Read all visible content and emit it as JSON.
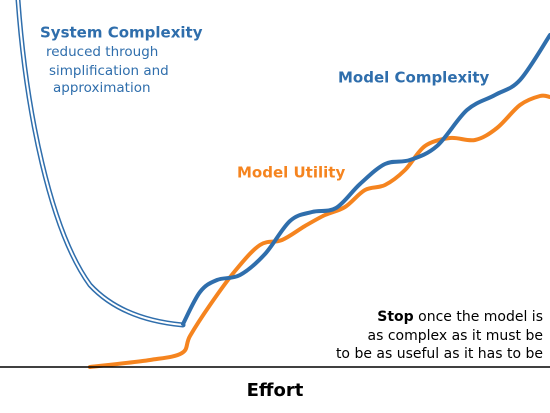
{
  "labels": {
    "system_complexity": {
      "title": "System Complexity",
      "lines": [
        "reduced through",
        "simplification and",
        "approximation"
      ]
    },
    "model_complexity": "Model Complexity",
    "model_utility": "Model Utility",
    "stop": {
      "bold": "Stop",
      "lines": [
        " once the model is",
        "as complex as it must be",
        "to be as useful as it has to be"
      ]
    },
    "axis": "Effort"
  }
}
